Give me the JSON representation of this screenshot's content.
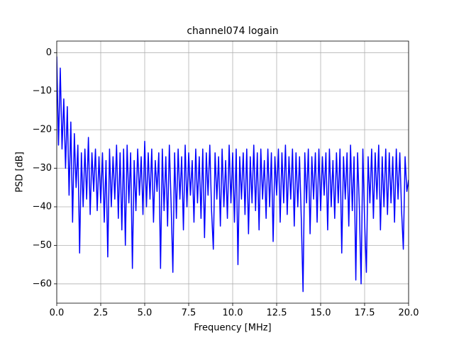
{
  "chart_data": {
    "type": "line",
    "title": "channel074 logain",
    "xlabel": "Frequency [MHz]",
    "ylabel": "PSD [dB]",
    "color": "#0000ff",
    "grid": true,
    "xlim": [
      0,
      20
    ],
    "ylim": [
      -65,
      3
    ],
    "xticks": [
      {
        "value": 0,
        "label": "0.0"
      },
      2.5,
      {
        "value": 5,
        "label": "5.0"
      },
      7.5,
      {
        "value": 10,
        "label": "10.0"
      },
      12.5,
      {
        "value": 15,
        "label": "15.0"
      },
      17.5,
      {
        "value": 20,
        "label": "20.0"
      }
    ],
    "yticks": [
      0,
      {
        "value": -10,
        "label": "−10"
      },
      {
        "value": -20,
        "label": "−20"
      },
      {
        "value": -30,
        "label": "−30"
      },
      {
        "value": -40,
        "label": "−40"
      },
      {
        "value": -50,
        "label": "−50"
      },
      {
        "value": -60,
        "label": "−60"
      }
    ],
    "x": [
      0,
      0.1,
      0.2,
      0.3,
      0.4,
      0.5,
      0.6,
      0.7,
      0.8,
      0.9,
      1,
      1.1,
      1.2,
      1.3,
      1.4,
      1.5,
      1.6,
      1.7,
      1.8,
      1.9,
      2,
      2.1,
      2.2,
      2.3,
      2.4,
      2.5,
      2.6,
      2.7,
      2.8,
      2.9,
      3,
      3.1,
      3.2,
      3.3,
      3.4,
      3.5,
      3.6,
      3.7,
      3.8,
      3.9,
      4,
      4.1,
      4.2,
      4.3,
      4.4,
      4.5,
      4.6,
      4.7,
      4.8,
      4.9,
      5,
      5.1,
      5.2,
      5.3,
      5.4,
      5.5,
      5.6,
      5.7,
      5.8,
      5.9,
      6,
      6.1,
      6.2,
      6.3,
      6.4,
      6.5,
      6.6,
      6.7,
      6.8,
      6.9,
      7,
      7.1,
      7.2,
      7.3,
      7.4,
      7.5,
      7.6,
      7.7,
      7.8,
      7.9,
      8,
      8.1,
      8.2,
      8.3,
      8.4,
      8.5,
      8.6,
      8.7,
      8.8,
      8.9,
      9,
      9.1,
      9.2,
      9.3,
      9.4,
      9.5,
      9.6,
      9.7,
      9.8,
      9.9,
      10,
      10.1,
      10.2,
      10.3,
      10.4,
      10.5,
      10.6,
      10.7,
      10.8,
      10.9,
      11,
      11.1,
      11.2,
      11.3,
      11.4,
      11.5,
      11.6,
      11.7,
      11.8,
      11.9,
      12,
      12.1,
      12.2,
      12.3,
      12.4,
      12.5,
      12.6,
      12.7,
      12.8,
      12.9,
      13,
      13.1,
      13.2,
      13.3,
      13.4,
      13.5,
      13.6,
      13.7,
      13.8,
      13.9,
      14,
      14.1,
      14.2,
      14.3,
      14.4,
      14.5,
      14.6,
      14.7,
      14.8,
      14.9,
      15,
      15.1,
      15.2,
      15.3,
      15.4,
      15.5,
      15.6,
      15.7,
      15.8,
      15.9,
      16,
      16.1,
      16.2,
      16.3,
      16.4,
      16.5,
      16.6,
      16.7,
      16.8,
      16.9,
      17,
      17.1,
      17.2,
      17.3,
      17.4,
      17.5,
      17.6,
      17.7,
      17.8,
      17.9,
      18,
      18.1,
      18.2,
      18.3,
      18.4,
      18.5,
      18.6,
      18.7,
      18.8,
      18.9,
      19,
      19.1,
      19.2,
      19.3,
      19.4,
      19.5,
      19.6,
      19.7,
      19.8,
      19.9,
      20
    ],
    "values": [
      -1,
      -24,
      -4,
      -25,
      -12,
      -30,
      -14,
      -37,
      -18,
      -44,
      -21,
      -35,
      -24,
      -52,
      -26,
      -40,
      -25,
      -38,
      -22,
      -42,
      -26,
      -36,
      -25,
      -41,
      -27,
      -39,
      -26,
      -44,
      -28,
      -53,
      -25,
      -40,
      -27,
      -38,
      -24,
      -43,
      -26,
      -46,
      -25,
      -50,
      -24,
      -39,
      -26,
      -56,
      -28,
      -41,
      -25,
      -37,
      -27,
      -42,
      -23,
      -40,
      -26,
      -38,
      -25,
      -44,
      -28,
      -36,
      -26,
      -56,
      -25,
      -41,
      -27,
      -45,
      -24,
      -39,
      -57,
      -26,
      -43,
      -25,
      -38,
      -27,
      -46,
      -24,
      -40,
      -26,
      -37,
      -28,
      -44,
      -25,
      -39,
      -27,
      -43,
      -25,
      -48,
      -26,
      -37,
      -24,
      -41,
      -51,
      -26,
      -38,
      -27,
      -45,
      -25,
      -40,
      -28,
      -43,
      -24,
      -39,
      -26,
      -44,
      -25,
      -55,
      -27,
      -38,
      -26,
      -42,
      -25,
      -47,
      -27,
      -39,
      -24,
      -41,
      -26,
      -46,
      -25,
      -38,
      -28,
      -43,
      -25,
      -40,
      -26,
      -49,
      -27,
      -37,
      -25,
      -44,
      -26,
      -39,
      -24,
      -42,
      -27,
      -38,
      -25,
      -45,
      -26,
      -40,
      -27,
      -43,
      -62,
      -26,
      -39,
      -25,
      -47,
      -27,
      -38,
      -26,
      -44,
      -25,
      -41,
      -27,
      -37,
      -26,
      -46,
      -25,
      -40,
      -28,
      -43,
      -26,
      -39,
      -25,
      -52,
      -27,
      -38,
      -26,
      -45,
      -24,
      -41,
      -27,
      -59,
      -26,
      -40,
      -60,
      -25,
      -44,
      -57,
      -27,
      -39,
      -25,
      -43,
      -26,
      -38,
      -24,
      -46,
      -27,
      -40,
      -25,
      -42,
      -26,
      -39,
      -27,
      -44,
      -25,
      -38,
      -26,
      -41,
      -51,
      -27,
      -36,
      -33
    ]
  }
}
